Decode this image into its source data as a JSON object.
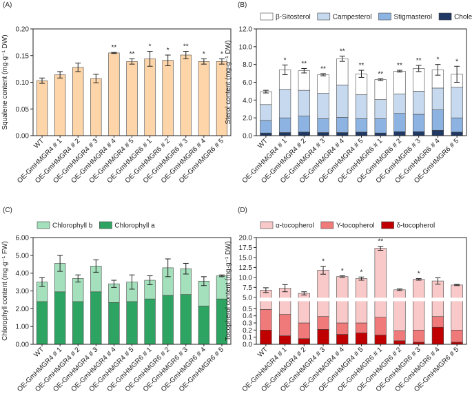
{
  "chart_data": [
    {
      "type": "bar",
      "panel_label": "(A)",
      "ylabel": "Squalene content (mg·g⁻¹ DW)",
      "categories": [
        "WT",
        "OE-GmHMGR4 # 1",
        "OE-GmHMGR4 # 2",
        "OE-GmHMGR4 # 3",
        "OE-GmHMGR4 # 4",
        "OE-GmHMGR4 # 5",
        "OE-GmHMGR6 # 1",
        "OE-GmHMGR6 # 2",
        "OE-GmHMGR6 # 3",
        "OE-GmHMGR6 # 4",
        "OE-GmHMGR6 # 5"
      ],
      "values": [
        0.103,
        0.114,
        0.128,
        0.107,
        0.155,
        0.139,
        0.144,
        0.141,
        0.151,
        0.139,
        0.139
      ],
      "errors": [
        0.005,
        0.006,
        0.008,
        0.008,
        0.001,
        0.005,
        0.014,
        0.01,
        0.007,
        0.005,
        0.005
      ],
      "annotations": [
        null,
        null,
        null,
        null,
        "**",
        "**",
        "*",
        "*",
        "**",
        "*",
        "*"
      ],
      "color": "#fdd5a8",
      "ylim": [
        0,
        0.2
      ],
      "yticks": [
        {
          "value": 0,
          "label": "0.00"
        },
        {
          "value": 0.05,
          "label": "0.05"
        },
        {
          "value": 0.1,
          "label": "0.10"
        },
        {
          "value": 0.15,
          "label": "0.15"
        },
        {
          "value": 0.2,
          "label": "0.20"
        }
      ]
    },
    {
      "type": "stacked_bar",
      "panel_label": "(B)",
      "ylabel": "Sterol content (mg·g⁻¹ DW)",
      "categories": [
        "WT",
        "OE-GmHMGR4 # 1",
        "OE-GmHMGR4 # 2",
        "OE-GmHMGR4 # 3",
        "OE-GmHMGR4 # 4",
        "OE-GmHMGR4 # 5",
        "OE-GmHMGR6 # 1",
        "OE-GmHMGR6 # 2",
        "OE-GmHMGR6 # 3",
        "OE-GmHMGR6 # 4",
        "OE-GmHMGR6 # 5"
      ],
      "series": [
        {
          "name": "β-Sitosterol",
          "color": "#ffffff",
          "values": [
            1.45,
            2.2,
            2.2,
            2.1,
            2.95,
            2.35,
            2.25,
            2.55,
            2.55,
            2.05,
            1.45
          ]
        },
        {
          "name": "Campesterol",
          "color": "#c6d9ee",
          "values": [
            1.8,
            3.2,
            2.9,
            2.85,
            3.65,
            2.7,
            2.15,
            2.2,
            2.6,
            2.45,
            3.45
          ]
        },
        {
          "name": "Stigmasterol",
          "color": "#8db3e2",
          "values": [
            1.4,
            1.65,
            1.8,
            1.55,
            1.7,
            1.5,
            1.6,
            2.05,
            1.95,
            2.3,
            1.6
          ]
        },
        {
          "name": "Cholesterol",
          "color": "#1f3864",
          "values": [
            0.3,
            0.35,
            0.4,
            0.35,
            0.35,
            0.4,
            0.3,
            0.45,
            0.45,
            0.6,
            0.4
          ]
        }
      ],
      "errors": [
        0.15,
        0.55,
        0.25,
        0.12,
        0.3,
        0.4,
        0.1,
        0.1,
        0.35,
        0.6,
        0.9
      ],
      "annotations": [
        null,
        "*",
        "**",
        "**",
        "**",
        "**",
        "**",
        "**",
        "**",
        "*",
        "*"
      ],
      "legend": "top",
      "ylim": [
        0,
        12
      ],
      "yticks": [
        {
          "value": 0,
          "label": "0.0"
        },
        {
          "value": 2,
          "label": "2.0"
        },
        {
          "value": 4,
          "label": "4.0"
        },
        {
          "value": 6,
          "label": "6.0"
        },
        {
          "value": 8,
          "label": "8.0"
        },
        {
          "value": 10,
          "label": "10.0"
        },
        {
          "value": 12,
          "label": "12.0"
        }
      ]
    },
    {
      "type": "stacked_bar",
      "panel_label": "(C)",
      "ylabel": "Chlorophyll content (mg·g⁻¹ FW)",
      "categories": [
        "WT",
        "OE-GmHMGR4 # 1",
        "OE-GmHMGR4 # 2",
        "OE-GmHMGR4 # 3",
        "OE-GmHMGR4 # 4",
        "OE-GmHMGR4 # 5",
        "OE-GmHMGR6 # 1",
        "OE-GmHMGR6 # 2",
        "OE-GmHMGR6 # 3",
        "OE-GmHMGR6 # 4",
        "OE-GmHMGR6 # 5"
      ],
      "series": [
        {
          "name": "Chlorophyll b",
          "color": "#a3e0bb",
          "values": [
            1.1,
            1.6,
            1.3,
            1.45,
            1.05,
            1.1,
            1.05,
            1.55,
            1.45,
            1.4,
            1.3
          ]
        },
        {
          "name": "Chlorophyll a",
          "color": "#2ea462",
          "values": [
            2.4,
            2.95,
            2.4,
            2.95,
            2.35,
            2.4,
            2.55,
            2.75,
            2.8,
            2.15,
            2.55
          ]
        }
      ],
      "errors": [
        0.25,
        0.45,
        0.2,
        0.35,
        0.2,
        0.4,
        0.25,
        0.5,
        0.3,
        0.25,
        0.05
      ],
      "legend": "top",
      "ylim": [
        0,
        6
      ],
      "yticks": [
        {
          "value": 0,
          "label": "0.00"
        },
        {
          "value": 1,
          "label": "1.00"
        },
        {
          "value": 2,
          "label": "2.00"
        },
        {
          "value": 3,
          "label": "3.00"
        },
        {
          "value": 4,
          "label": "4.00"
        },
        {
          "value": 5,
          "label": "5.00"
        },
        {
          "value": 6,
          "label": "6.00"
        }
      ]
    },
    {
      "type": "stacked_bar",
      "panel_label": "(D)",
      "ylabel": "Tocopherol content (mg·g⁻¹ DW)",
      "categories": [
        "WT",
        "OE-GmHMGR4 # 1",
        "OE-GmHMGR4 # 2",
        "OE-GmHMGR4 # 3",
        "OE-GmHMGR4 # 4",
        "OE-GmHMGR4 # 5",
        "OE-GmHMGR6 # 1",
        "OE-GmHMGR6 # 2",
        "OE-GmHMGR6 # 3",
        "OE-GmHMGR6 # 4",
        "OE-GmHMGR6 # 5"
      ],
      "series": [
        {
          "name": "α-tocopherol",
          "color": "#f9c9c9",
          "values": [
            6.31,
            6.88,
            5.7,
            11.41,
            9.9,
            9.4,
            16.92,
            6.71,
            9.3,
            8.71,
            7.9
          ]
        },
        {
          "name": "Υ-tocopherol",
          "color": "#f07a7a",
          "values": [
            0.29,
            0.3,
            0.22,
            0.18,
            0.16,
            0.14,
            0.25,
            0.14,
            0.17,
            0.15,
            0.17
          ]
        },
        {
          "name": "δ-tocopherol",
          "color": "#c00000",
          "values": [
            0.2,
            0.12,
            0.08,
            0.21,
            0.14,
            0.16,
            0.13,
            0.05,
            0.03,
            0.24,
            0.03
          ]
        }
      ],
      "errors": [
        0.6,
        0.9,
        0.4,
        1.0,
        0.2,
        0.4,
        0.5,
        0.2,
        0.2,
        0.8,
        0.15
      ],
      "annotations": [
        null,
        null,
        null,
        "*",
        "*",
        "*",
        "**",
        null,
        "*",
        null,
        null
      ],
      "legend": "top",
      "ylim": [
        0,
        20
      ],
      "ybreak": [
        0.6,
        5
      ],
      "yticks": [
        {
          "value": 0,
          "label": "0.0"
        },
        {
          "value": 0.1,
          "label": "0.1"
        },
        {
          "value": 0.2,
          "label": "0.2"
        },
        {
          "value": 0.3,
          "label": "0.3"
        },
        {
          "value": 0.4,
          "label": "0.4"
        },
        {
          "value": 0.5,
          "label": "0.5"
        },
        {
          "value": 5,
          "label": "5.0"
        },
        {
          "value": 7.5,
          "label": "7.5"
        },
        {
          "value": 10,
          "label": "10.0"
        },
        {
          "value": 12.5,
          "label": "12.5"
        },
        {
          "value": 15,
          "label": "15.0"
        },
        {
          "value": 17.5,
          "label": "17.5"
        },
        {
          "value": 20,
          "label": "20.0"
        }
      ]
    }
  ]
}
